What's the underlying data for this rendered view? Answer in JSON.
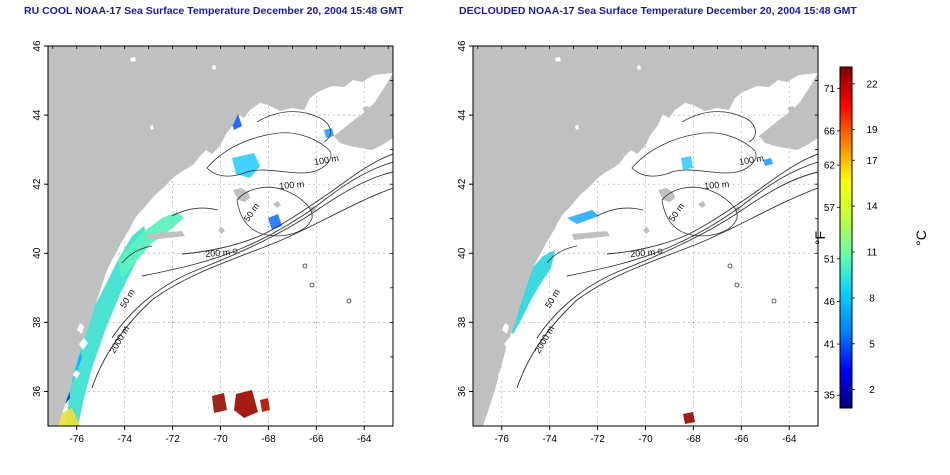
{
  "panels": [
    {
      "id": "raw",
      "title": "RU COOL NOAA-17 Sea Surface Temperature December 20, 2004 15:48 GMT",
      "contour_labels": [
        "100 m",
        "100 m",
        "50 m",
        "200 m",
        "50 m",
        "2000 m"
      ]
    },
    {
      "id": "declouded",
      "title": "DECLOUDED NOAA-17 Sea Surface Temperature December 20, 2004 15:48 GMT",
      "contour_labels": [
        "100 m",
        "100 m",
        "50 m",
        "200 m",
        "50 m",
        "2000 m"
      ]
    }
  ],
  "axes": {
    "x_ticks": [
      "-76",
      "-74",
      "-72",
      "-70",
      "-68",
      "-66",
      "-64"
    ],
    "y_ticks": [
      "36",
      "38",
      "40",
      "42",
      "44",
      "46"
    ],
    "x_range": [
      -77.2,
      -62.8
    ],
    "y_range": [
      35,
      46
    ]
  },
  "colorbar": {
    "fahrenheit_label": "°F",
    "celsius_label": "°C",
    "fahrenheit_ticks": [
      "35",
      "41",
      "46",
      "51",
      "57",
      "62",
      "66",
      "71"
    ],
    "celsius_ticks": [
      "2",
      "5",
      "8",
      "11",
      "14",
      "17",
      "19",
      "22"
    ],
    "colors": [
      "#00007f",
      "#0000ff",
      "#0080ff",
      "#00d0ff",
      "#60ffb0",
      "#c0ff40",
      "#ffff00",
      "#ff8000",
      "#ff0000",
      "#800000"
    ]
  },
  "colors": {
    "land": "#c0c0c0",
    "ocean": "#ffffff",
    "contour": "#333333",
    "grid": "#b0b0b0",
    "title": "#1a1aa6"
  }
}
